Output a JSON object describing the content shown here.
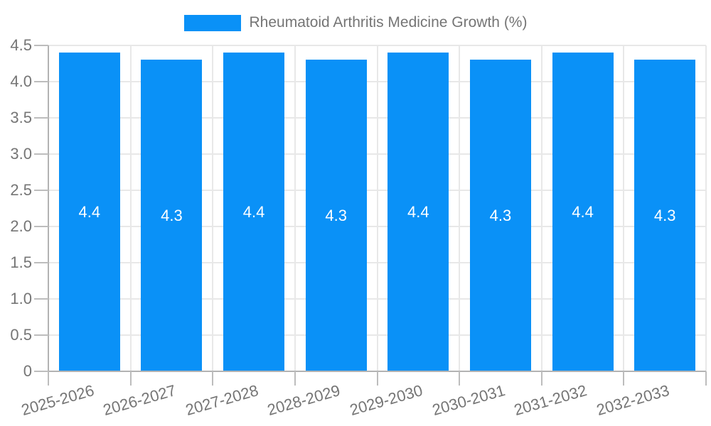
{
  "legend": {
    "label": "Rheumatoid Arthritis Medicine Growth (%)"
  },
  "chart_data": {
    "type": "bar",
    "title": "Rheumatoid Arthritis Medicine Growth (%)",
    "categories": [
      "2025-2026",
      "2026-2027",
      "2027-2028",
      "2028-2029",
      "2029-2030",
      "2030-2031",
      "2031-2032",
      "2032-2033"
    ],
    "values": [
      4.4,
      4.3,
      4.4,
      4.3,
      4.4,
      4.3,
      4.4,
      4.3
    ],
    "bar_labels": [
      "4.4",
      "4.3",
      "4.4",
      "4.3",
      "4.4",
      "4.3",
      "4.4",
      "4.3"
    ],
    "xlabel": "",
    "ylabel": "",
    "ylim": [
      0,
      4.5
    ],
    "ytick_step": 0.5,
    "ytick_labels": [
      "0",
      "0.5",
      "1.0",
      "1.5",
      "2.0",
      "2.5",
      "3.0",
      "3.5",
      "4.0",
      "4.5"
    ],
    "grid": true,
    "legend_position": "top-center",
    "colors": {
      "bar": "#0a91f7",
      "tick_label": "#757575",
      "legend_label": "#757575",
      "gridline": "#e8e8e8",
      "axis_line": "#b3b3b3",
      "tick_mark": "#bdbdbd",
      "bar_value_label": "#ffffff",
      "background": "#ffffff"
    }
  }
}
